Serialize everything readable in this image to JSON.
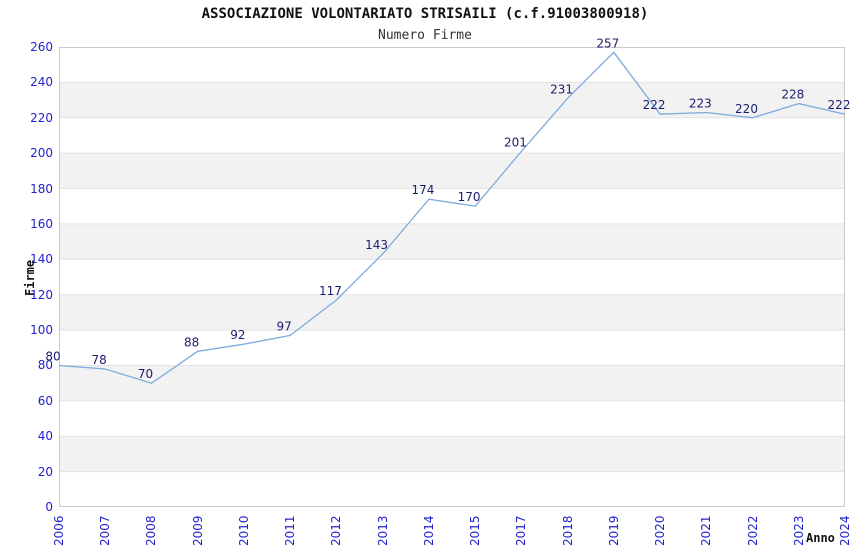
{
  "chart_data": {
    "type": "line",
    "title": "ASSOCIAZIONE VOLONTARIATO STRISAILI (c.f.91003800918)",
    "subtitle": "Numero Firme",
    "xlabel": "Anno",
    "ylabel": "Firme",
    "categories": [
      "2006",
      "2007",
      "2008",
      "2009",
      "2010",
      "2011",
      "2012",
      "2013",
      "2014",
      "2015",
      "2017",
      "2018",
      "2019",
      "2020",
      "2021",
      "2022",
      "2023",
      "2024"
    ],
    "series": [
      {
        "name": "Numero Firme",
        "values": [
          80,
          78,
          70,
          88,
          92,
          97,
          117,
          143,
          174,
          170,
          201,
          231,
          257,
          222,
          223,
          220,
          228,
          222
        ]
      }
    ],
    "ylim": [
      0,
      260
    ],
    "ytick_step": 20,
    "grid": "horizontal-bands-alternating",
    "legend": "none",
    "data_labels": true,
    "x_tick_rotation_deg": -90
  },
  "colors": {
    "line": "#7dacdf",
    "axis_tick_text": "#2222cc",
    "data_label_text": "#1c1c6e",
    "band_main": "#ffffff",
    "band_alt": "#f2f2f2",
    "gridline": "#e2e2e2",
    "plot_border": "#c9c9c9",
    "title_text": "#111111",
    "subtitle_text": "#333333"
  }
}
